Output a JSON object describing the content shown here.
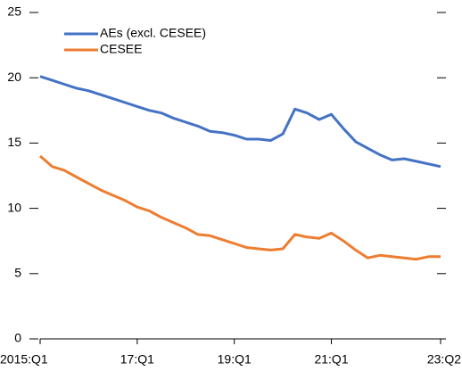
{
  "chart_data": {
    "type": "line",
    "categories": [
      "2015:Q1",
      null,
      null,
      null,
      null,
      null,
      null,
      null,
      "17:Q1",
      null,
      null,
      null,
      null,
      null,
      null,
      null,
      "19:Q1",
      null,
      null,
      null,
      null,
      null,
      null,
      null,
      "21:Q1",
      null,
      null,
      null,
      null,
      null,
      null,
      null,
      null,
      "23:Q2"
    ],
    "series": [
      {
        "name": "AEs (excl. CESEE)",
        "color": "#4472c4",
        "values": [
          20.1,
          19.8,
          19.5,
          19.2,
          19.0,
          18.7,
          18.4,
          18.1,
          17.8,
          17.5,
          17.3,
          16.9,
          16.6,
          16.3,
          15.9,
          15.8,
          15.6,
          15.3,
          15.3,
          15.2,
          15.7,
          17.6,
          17.3,
          16.8,
          17.2,
          16.1,
          15.1,
          14.6,
          14.1,
          13.7,
          13.8,
          13.6,
          13.4,
          13.2
        ]
      },
      {
        "name": "CESEE",
        "color": "#ed7d31",
        "values": [
          14.0,
          13.2,
          12.9,
          12.4,
          11.9,
          11.4,
          11.0,
          10.6,
          10.1,
          9.8,
          9.3,
          8.9,
          8.5,
          8.0,
          7.9,
          7.6,
          7.3,
          7.0,
          6.9,
          6.8,
          6.9,
          8.0,
          7.8,
          7.7,
          8.1,
          7.5,
          6.8,
          6.2,
          6.4,
          6.3,
          6.2,
          6.1,
          6.3,
          6.3
        ]
      }
    ],
    "ylim": [
      0,
      25
    ],
    "yticks": [
      0,
      5,
      10,
      15,
      20,
      25
    ],
    "legend": "upper left"
  }
}
